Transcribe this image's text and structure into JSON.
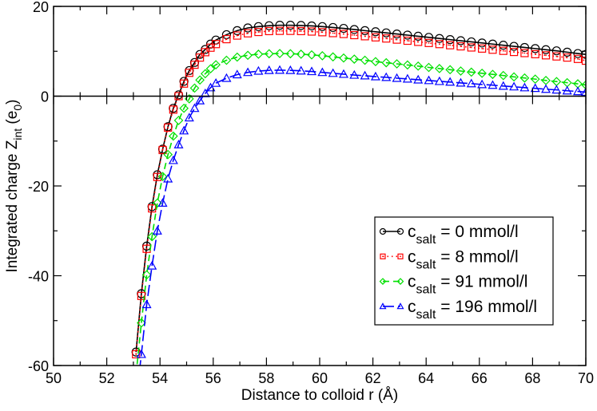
{
  "chart_data": {
    "type": "line",
    "xlabel": "Distance to colloid r (Å)",
    "ylabel": "Integrated charge Z",
    "ylabel_sub": "int",
    "ylabel_unit_prefix": " (e",
    "ylabel_unit_sub": "0",
    "ylabel_unit_suffix": ")",
    "xlim": [
      50,
      70
    ],
    "ylim": [
      -60,
      20
    ],
    "xticks": [
      50,
      52,
      54,
      56,
      58,
      60,
      62,
      64,
      66,
      68,
      70
    ],
    "yticks": [
      -60,
      -40,
      -20,
      0,
      20
    ],
    "grid": false,
    "legend_position": "bottom-right",
    "x": [
      53.1,
      53.3,
      53.5,
      53.7,
      53.9,
      54.1,
      54.3,
      54.5,
      54.7,
      54.9,
      55.1,
      55.3,
      55.5,
      55.7,
      55.9,
      56.1,
      56.5,
      56.9,
      57.3,
      57.7,
      58.1,
      58.5,
      58.9,
      59.3,
      59.7,
      60.1,
      60.5,
      60.9,
      61.3,
      61.7,
      62.1,
      62.5,
      62.9,
      63.3,
      63.7,
      64.1,
      64.5,
      64.9,
      65.3,
      65.7,
      66.1,
      66.5,
      66.9,
      67.3,
      67.7,
      68.1,
      68.5,
      68.9,
      69.3,
      69.7,
      70.0
    ],
    "series": [
      {
        "name_main": "c",
        "name_sub": "salt",
        "name_rest": " = 0 mmol/l",
        "color": "#000000",
        "marker": "circle",
        "line": "solid",
        "values": [
          -57,
          -44,
          -33.4,
          -24.6,
          -17.5,
          -11.8,
          -6.8,
          -2.7,
          0.3,
          3.3,
          5.7,
          7.5,
          9.3,
          10.4,
          11.6,
          12.5,
          13.7,
          14.6,
          15.2,
          15.5,
          15.7,
          15.8,
          15.8,
          15.75,
          15.65,
          15.5,
          15.3,
          15.1,
          14.85,
          14.6,
          14.35,
          14.1,
          13.85,
          13.6,
          13.35,
          13.1,
          12.85,
          12.6,
          12.35,
          12.1,
          11.85,
          11.6,
          11.35,
          11.1,
          10.85,
          10.6,
          10.35,
          10.1,
          9.8,
          9.5,
          9.3
        ]
      },
      {
        "name_main": "c",
        "name_sub": "salt",
        "name_rest": " = 8 mmol/l",
        "color": "#ff0000",
        "marker": "square",
        "line": "dotted",
        "values": [
          -57.5,
          -44.5,
          -34,
          -25,
          -18,
          -12,
          -7,
          -3,
          0,
          2.8,
          5.2,
          7,
          8.6,
          9.8,
          10.8,
          11.6,
          12.7,
          13.5,
          14.0,
          14.3,
          14.5,
          14.55,
          14.55,
          14.5,
          14.4,
          14.25,
          14.05,
          13.85,
          13.6,
          13.35,
          13.1,
          12.85,
          12.6,
          12.35,
          12.1,
          11.85,
          11.6,
          11.35,
          11.1,
          10.85,
          10.6,
          10.35,
          10.1,
          9.85,
          9.6,
          9.35,
          9.1,
          8.85,
          8.6,
          8.3,
          7.9
        ]
      },
      {
        "name_main": "c",
        "name_sub": "salt",
        "name_rest": " = 91 mmol/l",
        "color": "#00e000",
        "marker": "diamond",
        "line": "dashed",
        "values": [
          -62,
          -50.5,
          -39.8,
          -31.3,
          -23.8,
          -17.9,
          -13,
          -8.9,
          -5.4,
          -2.7,
          -0.6,
          1.8,
          3.6,
          5,
          6.1,
          7.0,
          8.0,
          8.7,
          9.1,
          9.35,
          9.45,
          9.5,
          9.45,
          9.35,
          9.2,
          9.0,
          8.75,
          8.5,
          8.25,
          8.0,
          7.7,
          7.45,
          7.2,
          6.95,
          6.7,
          6.4,
          6.15,
          5.9,
          5.6,
          5.35,
          5.1,
          4.85,
          4.6,
          4.3,
          4.05,
          3.8,
          3.5,
          3.25,
          3.0,
          2.75,
          2.5
        ]
      },
      {
        "name_main": "c",
        "name_sub": "salt",
        "name_rest": " = 196 mmol/l",
        "color": "#0000ff",
        "marker": "triangle",
        "line": "longdash",
        "values": [
          -68,
          -57.5,
          -46.4,
          -37.8,
          -30,
          -23.8,
          -18.4,
          -14.3,
          -10.8,
          -7.7,
          -4.8,
          -2.7,
          -1.0,
          0.6,
          1.9,
          2.9,
          4.0,
          4.8,
          5.3,
          5.6,
          5.75,
          5.8,
          5.75,
          5.65,
          5.5,
          5.3,
          5.1,
          4.9,
          4.7,
          4.55,
          4.35,
          4.2,
          4.0,
          3.85,
          3.65,
          3.5,
          3.3,
          3.15,
          2.95,
          2.8,
          2.6,
          2.45,
          2.25,
          2.1,
          1.9,
          1.75,
          1.55,
          1.4,
          1.2,
          1.05,
          0.9
        ]
      }
    ]
  }
}
